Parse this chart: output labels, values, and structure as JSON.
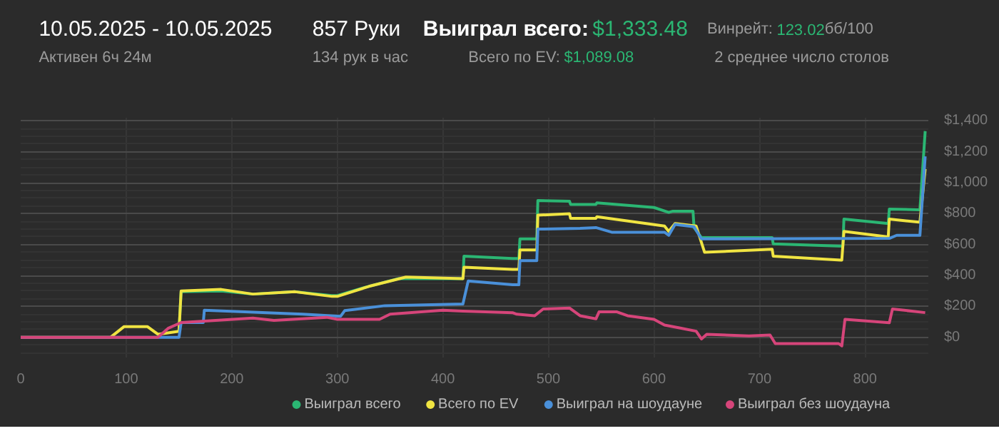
{
  "chart_data": {
    "type": "line",
    "annotations": [
      "10.05.2025 - 10.05.2025",
      "Активен 6ч 24м",
      "857 Руки",
      "134 рук в час",
      "Выиграл всего:",
      "$1,333.48",
      "Всего по EV:",
      "$1,089.08",
      "Винрейт:",
      "123.02",
      "бб/100",
      "2 среднее число столов"
    ],
    "xlim": [
      0,
      860
    ],
    "xticks": [
      0,
      100,
      200,
      300,
      400,
      500,
      600,
      700,
      800
    ],
    "ylim": [
      -130,
      1420
    ],
    "yticks": [
      {
        "value": 0,
        "label": "$0"
      },
      {
        "value": 200,
        "label": "$200"
      },
      {
        "value": 400,
        "label": "$400"
      },
      {
        "value": 600,
        "label": "$600"
      },
      {
        "value": 800,
        "label": "$800"
      },
      {
        "value": 1000,
        "label": "$1,000"
      },
      {
        "value": 1200,
        "label": "$1,200"
      },
      {
        "value": 1400,
        "label": "$1,400"
      }
    ],
    "grid": true,
    "legend": "bottom right",
    "marker": "none",
    "line_style": "solid",
    "series": [
      {
        "name": "Выиграл всего",
        "color": "#2bb673",
        "x": [
          150,
          152,
          190,
          220,
          260,
          295,
          300,
          327,
          358,
          419,
          420,
          466,
          472,
          473,
          489,
          490,
          520,
          521,
          545,
          546,
          600,
          614,
          618,
          637,
          638,
          645,
          712,
          713,
          779,
          780,
          822,
          823,
          851,
          852,
          857
        ],
        "values": [
          40,
          296,
          300,
          280,
          295,
          270,
          270,
          325,
          380,
          380,
          525,
          510,
          510,
          637,
          637,
          885,
          880,
          860,
          860,
          870,
          840,
          808,
          816,
          816,
          710,
          645,
          645,
          605,
          590,
          765,
          736,
          830,
          825,
          825,
          1333.48
        ]
      },
      {
        "name": "Всего по EV",
        "color": "#f0e442",
        "x": [
          0,
          85,
          98,
          120,
          130,
          150,
          152,
          190,
          220,
          260,
          295,
          300,
          330,
          365,
          419,
          420,
          466,
          472,
          473,
          489,
          490,
          520,
          521,
          545,
          546,
          610,
          614,
          620,
          640,
          648,
          712,
          713,
          777,
          778,
          780,
          822,
          823,
          851,
          852,
          857
        ],
        "values": [
          0,
          0,
          70,
          70,
          20,
          40,
          300,
          310,
          280,
          295,
          265,
          265,
          330,
          390,
          380,
          453,
          440,
          440,
          565,
          565,
          790,
          800,
          770,
          770,
          780,
          720,
          685,
          736,
          720,
          550,
          570,
          525,
          500,
          500,
          685,
          650,
          765,
          745,
          745,
          1089.08
        ]
      },
      {
        "name": "Выиграл на шоудауне",
        "color": "#4a90d9",
        "x": [
          0,
          150,
          152,
          173,
          174,
          267,
          303,
          307,
          345,
          419,
          424,
          466,
          472,
          473,
          489,
          490,
          530,
          545,
          560,
          610,
          614,
          620,
          638,
          645,
          823,
          830,
          852,
          857
        ],
        "values": [
          0,
          0,
          96,
          96,
          176,
          150,
          136,
          173,
          205,
          216,
          365,
          340,
          340,
          496,
          496,
          700,
          705,
          710,
          680,
          680,
          660,
          730,
          715,
          637,
          640,
          660,
          660,
          1170
        ]
      },
      {
        "name": "Выиграл без шоудауна",
        "color": "#d6457a",
        "x": [
          0,
          130,
          140,
          152,
          220,
          240,
          290,
          300,
          340,
          350,
          400,
          419,
          440,
          466,
          470,
          487,
          495,
          520,
          530,
          545,
          548,
          565,
          575,
          600,
          610,
          625,
          640,
          645,
          650,
          690,
          710,
          715,
          775,
          778,
          781,
          823,
          826,
          857
        ],
        "values": [
          0,
          0,
          60,
          96,
          125,
          110,
          130,
          117,
          117,
          150,
          176,
          170,
          165,
          160,
          150,
          140,
          184,
          190,
          140,
          120,
          165,
          165,
          140,
          117,
          80,
          60,
          40,
          -10,
          20,
          10,
          15,
          -40,
          -40,
          -55,
          117,
          95,
          184,
          160
        ]
      }
    ]
  }
}
